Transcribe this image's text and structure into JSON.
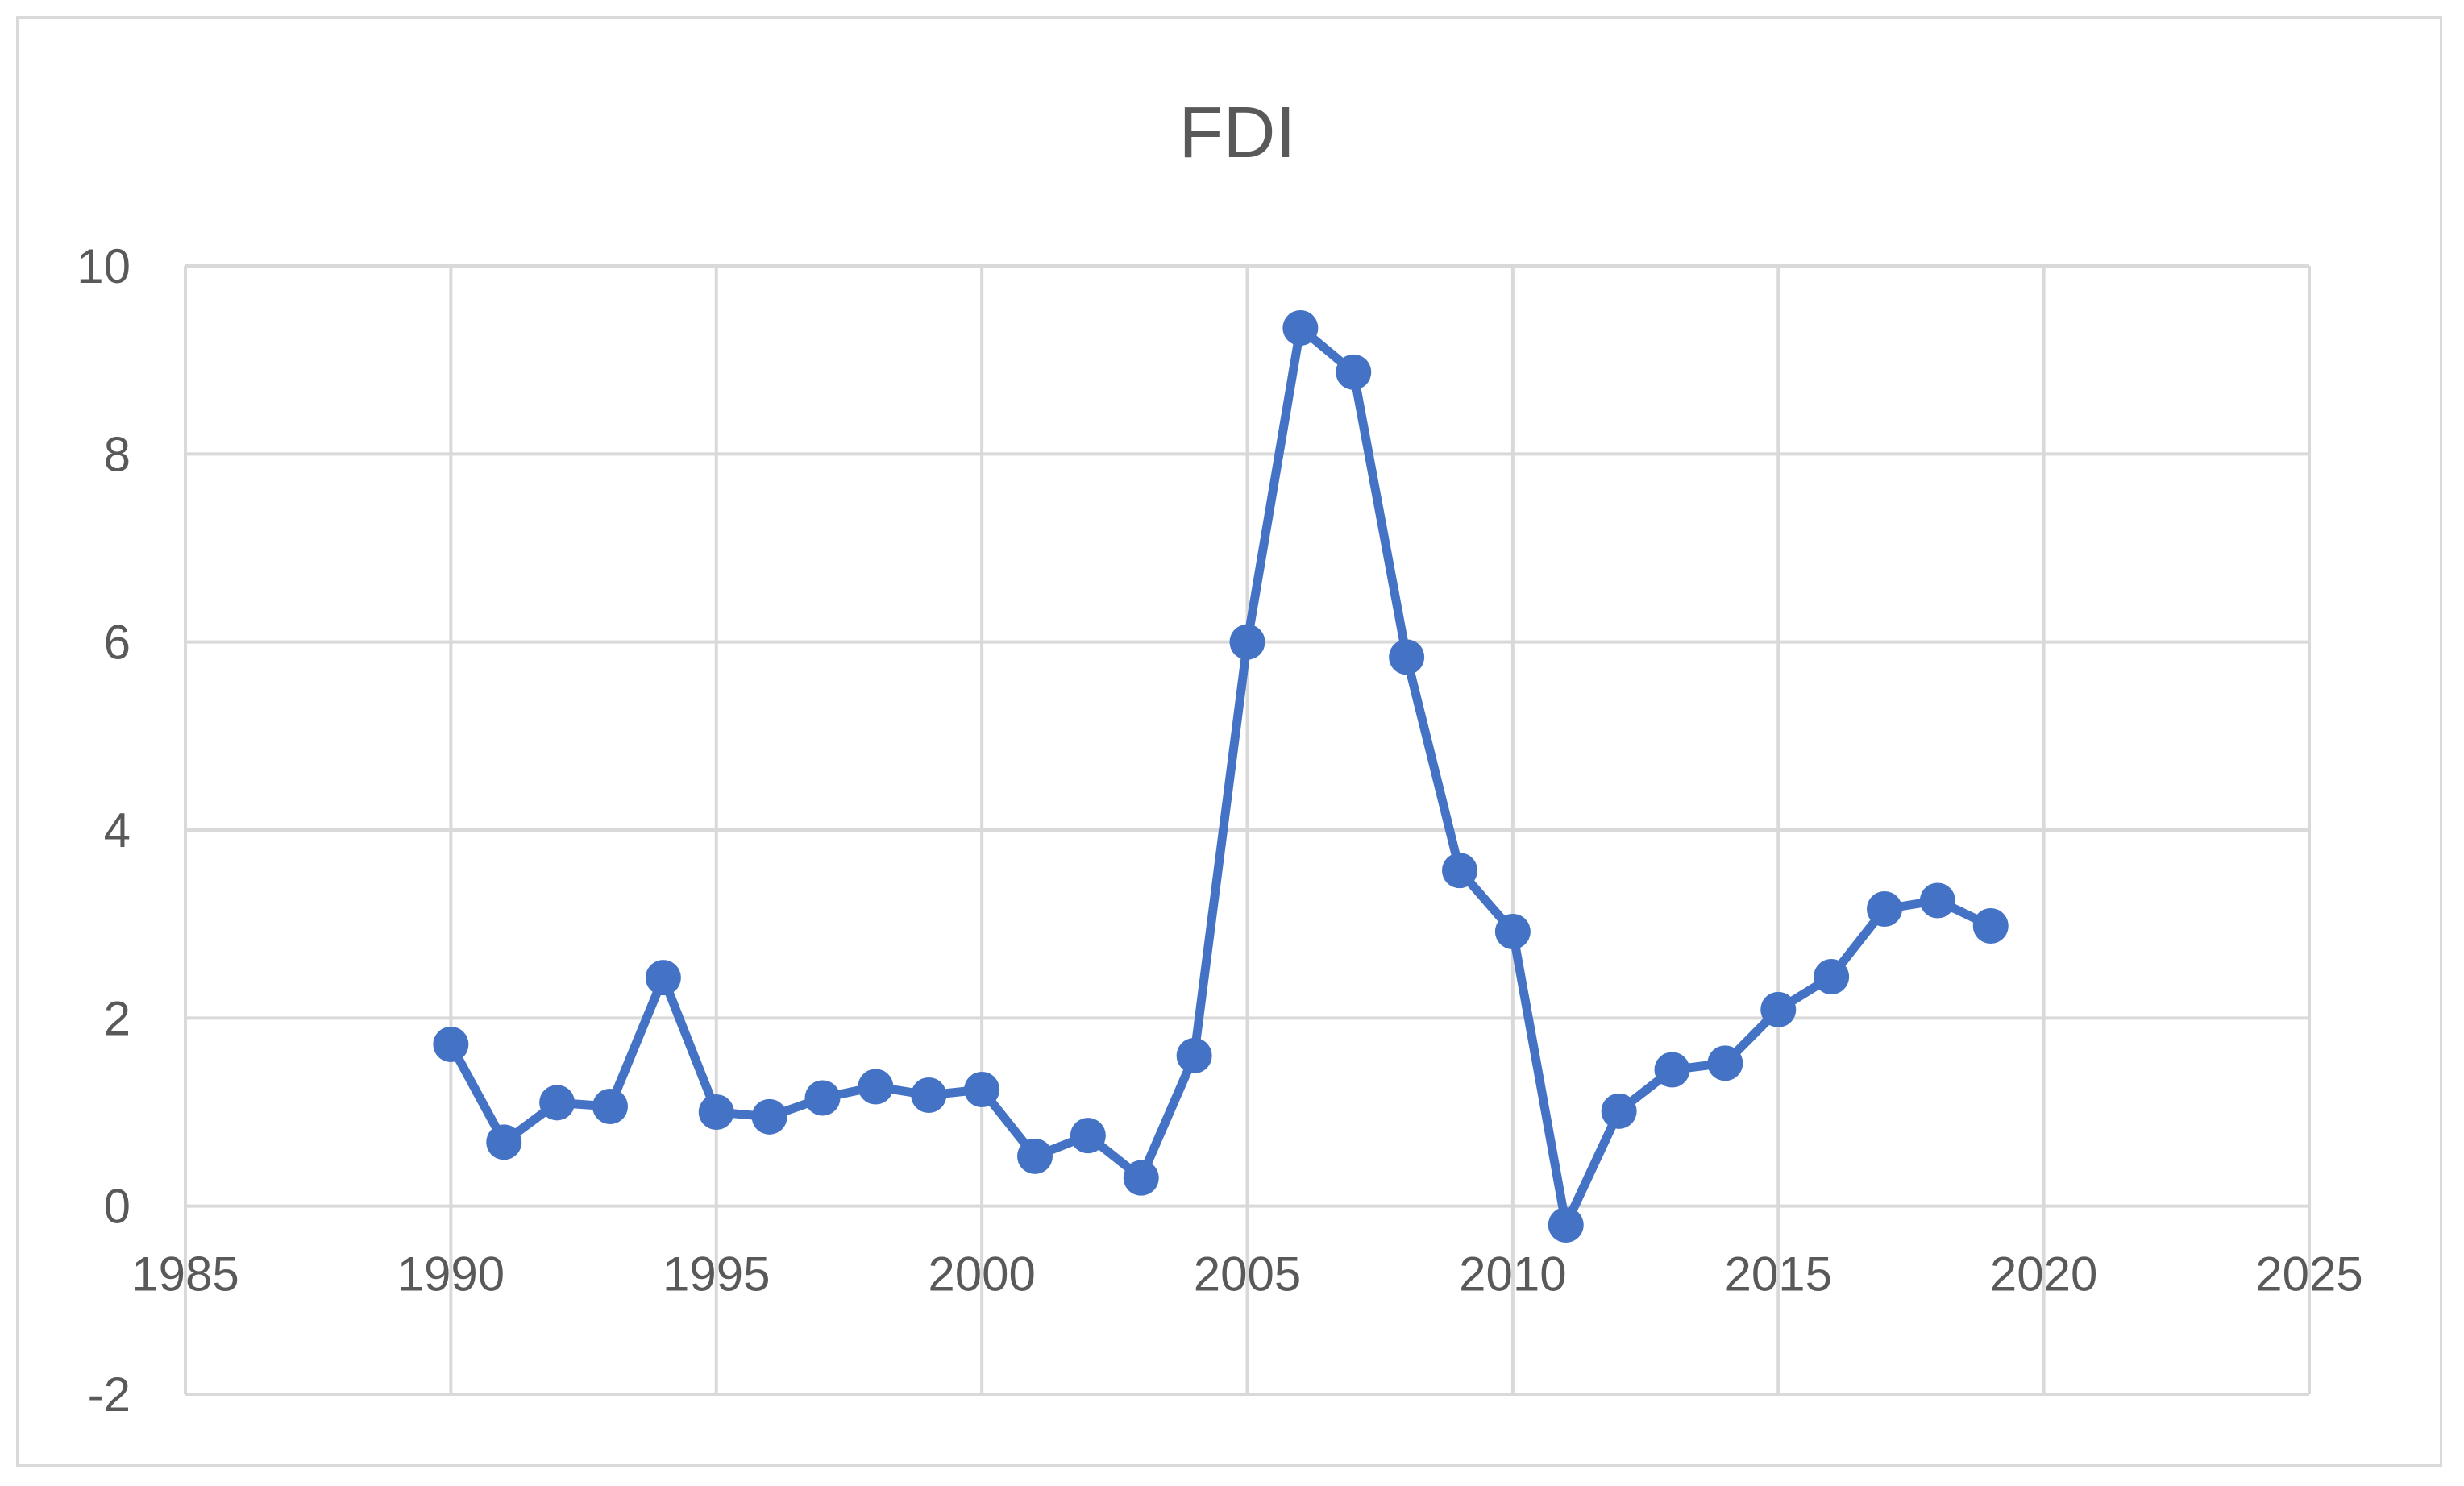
{
  "chart_data": {
    "type": "scatter",
    "title": "FDI",
    "xlabel": "",
    "ylabel": "",
    "xlim": [
      1985,
      2025
    ],
    "ylim": [
      -2,
      10
    ],
    "x_ticks": [
      1985,
      1990,
      1995,
      2000,
      2005,
      2010,
      2015,
      2020,
      2025
    ],
    "y_ticks": [
      -2,
      0,
      2,
      4,
      6,
      8,
      10
    ],
    "grid": true,
    "legend": "none",
    "series_color": "#4472C4",
    "grid_color": "#d9d9d9",
    "series": [
      {
        "x": [
          1990,
          1991,
          1992,
          1993,
          1994,
          1995,
          1996,
          1997,
          1998,
          1999,
          2000,
          2001,
          2002,
          2003,
          2004,
          2005,
          2006,
          2007,
          2008,
          2009,
          2010,
          2011,
          2012,
          2013,
          2014,
          2015,
          2016,
          2017,
          2018,
          2019
        ],
        "y": [
          1.72,
          0.68,
          1.1,
          1.06,
          2.43,
          1.0,
          0.95,
          1.15,
          1.27,
          1.18,
          1.24,
          0.53,
          0.75,
          0.3,
          1.6,
          6.0,
          9.34,
          8.87,
          5.84,
          3.57,
          2.92,
          -0.2,
          1.01,
          1.45,
          1.52,
          2.09,
          2.44,
          3.16,
          3.25,
          2.98
        ]
      }
    ]
  }
}
